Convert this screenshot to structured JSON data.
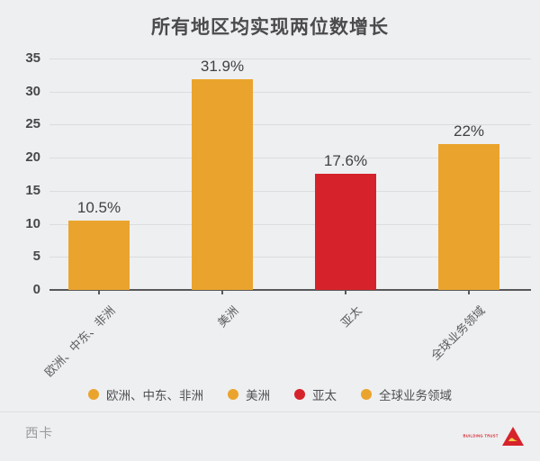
{
  "title": "所有地区均实现两位数增长",
  "chart_data": {
    "type": "bar",
    "title": "所有地区均实现两位数增长",
    "categories": [
      "欧洲、中东、非洲",
      "美洲",
      "亚太",
      "全球业务领域"
    ],
    "values": [
      10.5,
      31.9,
      17.6,
      22
    ],
    "value_labels": [
      "10.5%",
      "31.9%",
      "17.6%",
      "22%"
    ],
    "bar_colors": [
      "#EAA42D",
      "#EAA42D",
      "#D6232B",
      "#EAA42D"
    ],
    "xlabel": "",
    "ylabel": "",
    "ylim": [
      0,
      35
    ],
    "yticks": [
      0,
      5,
      10,
      15,
      20,
      25,
      30,
      35
    ],
    "grid": true,
    "legend_position": "bottom"
  },
  "legend": {
    "items": [
      {
        "label": "欧洲、中东、非洲",
        "color": "#EAA42D"
      },
      {
        "label": "美洲",
        "color": "#EAA42D"
      },
      {
        "label": "亚太",
        "color": "#D6232B"
      },
      {
        "label": "全球业务领域",
        "color": "#EAA42D"
      }
    ]
  },
  "footer": {
    "source_label": "西卡",
    "logo_tagline": "BUILDING TRUST"
  },
  "colors": {
    "background": "#EEEFF1",
    "accent_orange": "#EAA42D",
    "accent_red": "#D6232B",
    "gridline": "#DBDCDE",
    "axis": "#58585A",
    "text_dark": "#4B4B4D",
    "text_gray": "#9A9B9D"
  }
}
